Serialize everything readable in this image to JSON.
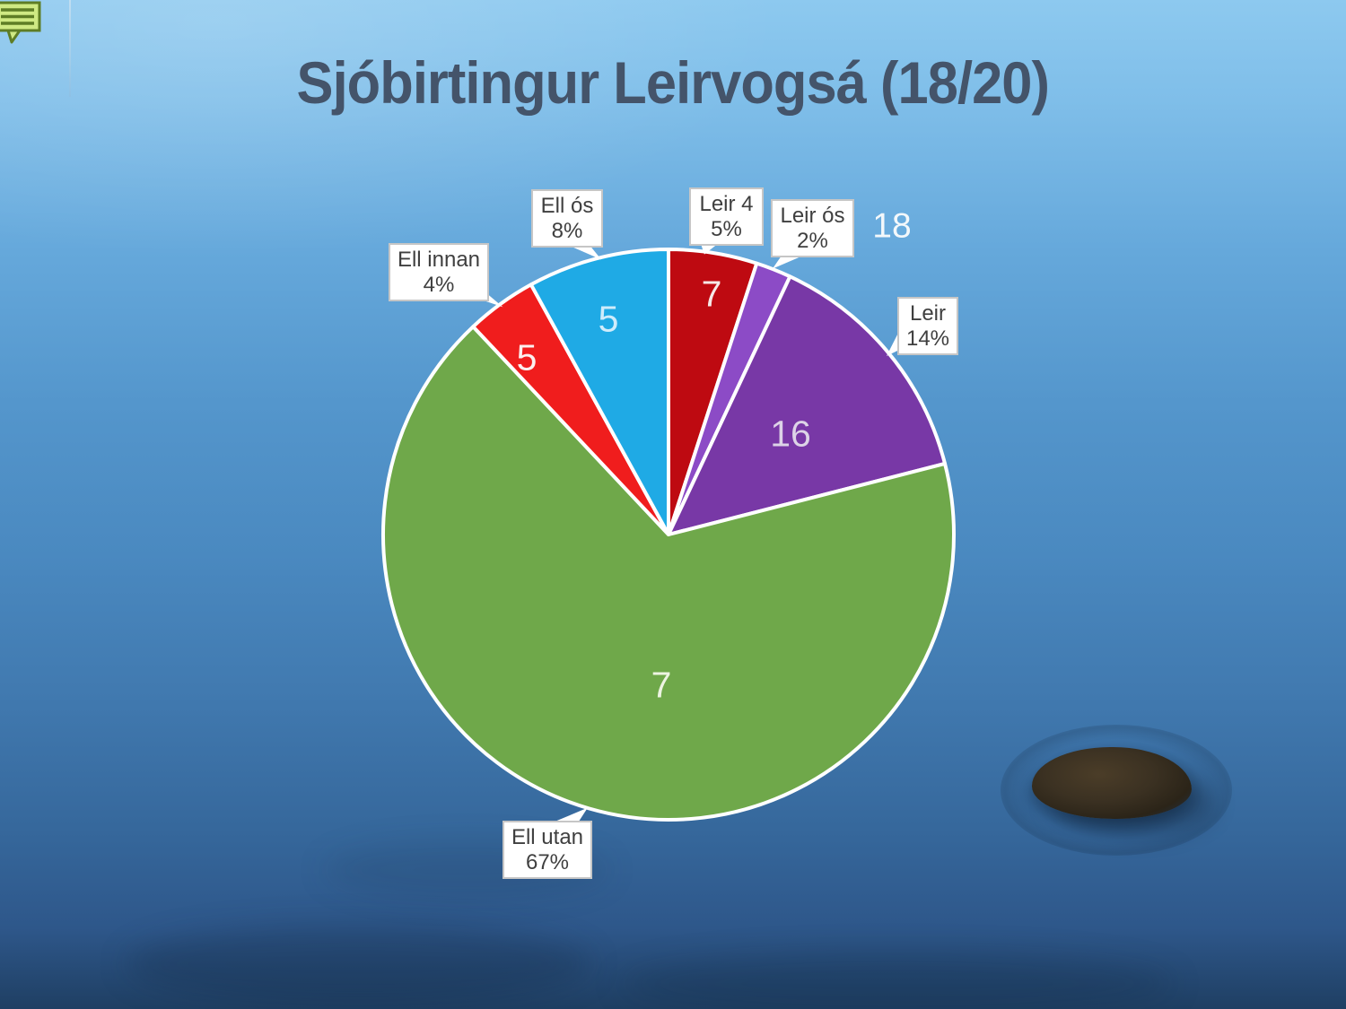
{
  "slide": {
    "title": "Sjóbirtingur Leirvogsá (18/20)",
    "title_color": "#44546A",
    "comment_icon": "comment-bubble-icon",
    "comment_icon_fill": "#CFE983",
    "comment_icon_stroke": "#5E7D25",
    "background": {
      "top_color": "#8DC9EF",
      "bottom_color": "#1F3F63"
    }
  },
  "chart_data": {
    "type": "pie",
    "title": "Sjóbirtingur Leirvogsá (18/20)",
    "start_angle_deg": 0,
    "direction": "clockwise",
    "legend_position": "none",
    "slices": [
      {
        "name": "Leir 4",
        "percent": 5,
        "value": 7,
        "value_label": "7",
        "value_label_color": "#F6E9E8",
        "color": "#BE0A11",
        "callout_line1": "Leir 4",
        "callout_line2": "5%"
      },
      {
        "name": "Leir ós",
        "percent": 2,
        "value": 18,
        "value_label": "18",
        "value_label_color": "#F3F8FB",
        "color": "#8C4BC6",
        "callout_line1": "Leir ós",
        "callout_line2": "2%",
        "value_label_outside": true
      },
      {
        "name": "Leir",
        "percent": 14,
        "value": 16,
        "value_label": "16",
        "value_label_color": "#DDD3E7",
        "color": "#7838A6",
        "callout_line1": "Leir",
        "callout_line2": "14%"
      },
      {
        "name": "Ell utan",
        "percent": 67,
        "value": 7,
        "value_label": "7",
        "value_label_color": "#EDF4E2",
        "color": "#6FA84A",
        "callout_line1": "Ell utan",
        "callout_line2": "67%"
      },
      {
        "name": "Ell innan",
        "percent": 4,
        "value": 5,
        "value_label": "5",
        "value_label_color": "#FCEFEE",
        "color": "#F01D1D",
        "callout_line1": "Ell innan",
        "callout_line2": "4%"
      },
      {
        "name": "Ell ós",
        "percent": 8,
        "value": 5,
        "value_label": "5",
        "value_label_color": "#CFECFB",
        "color": "#1FAAE5",
        "callout_line1": "Ell ós",
        "callout_line2": "8%"
      }
    ]
  }
}
